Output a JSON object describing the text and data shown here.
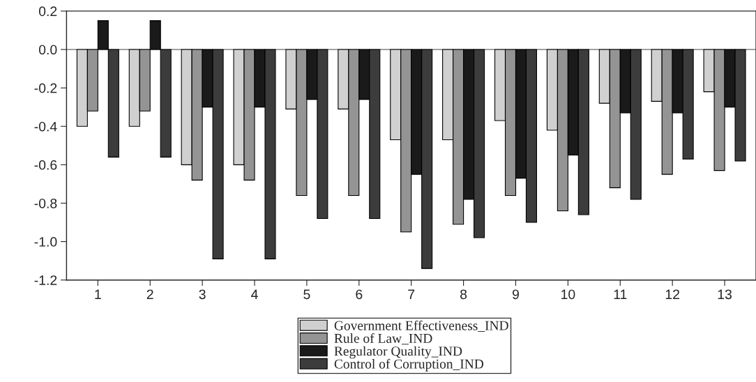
{
  "chart_data": {
    "type": "bar",
    "categories": [
      "1",
      "2",
      "3",
      "4",
      "5",
      "6",
      "7",
      "8",
      "9",
      "10",
      "11",
      "12",
      "13"
    ],
    "series": [
      {
        "name": "Government Effectiveness_IND",
        "color": "#d0d0d0",
        "values": [
          -0.4,
          -0.4,
          -0.6,
          -0.6,
          -0.31,
          -0.31,
          -0.47,
          -0.47,
          -0.37,
          -0.42,
          -0.28,
          -0.27,
          -0.22
        ]
      },
      {
        "name": "Rule of Law_IND",
        "color": "#949494",
        "values": [
          -0.32,
          -0.32,
          -0.68,
          -0.68,
          -0.76,
          -0.76,
          -0.95,
          -0.91,
          -0.76,
          -0.84,
          -0.72,
          -0.65,
          -0.63
        ]
      },
      {
        "name": "Regulator Quality_IND",
        "color": "#1a1a1a",
        "values": [
          0.15,
          0.15,
          -0.3,
          -0.3,
          -0.26,
          -0.26,
          -0.65,
          -0.78,
          -0.67,
          -0.55,
          -0.33,
          -0.33,
          -0.3
        ]
      },
      {
        "name": "Control of Corruption_IND",
        "color": "#3c3c3c",
        "values": [
          -0.56,
          -0.56,
          -1.09,
          -1.09,
          -0.88,
          -0.88,
          -1.14,
          -0.98,
          -0.9,
          -0.86,
          -0.78,
          -0.57,
          -0.58
        ]
      }
    ],
    "ylim": [
      -1.2,
      0.2
    ],
    "yticks": [
      {
        "value": 0.2,
        "label": "0.2"
      },
      {
        "value": 0.0,
        "label": "0.0"
      },
      {
        "value": -0.2,
        "label": "-0.2"
      },
      {
        "value": -0.4,
        "label": "-0.4"
      },
      {
        "value": -0.6,
        "label": "-0.6"
      },
      {
        "value": -0.8,
        "label": "-0.8"
      },
      {
        "value": -1.0,
        "label": "-1.0"
      },
      {
        "value": -1.2,
        "label": "-1.2"
      }
    ],
    "ref_lines": [
      {
        "axis": "y",
        "value": 0.0,
        "color": "#808080"
      }
    ],
    "grid": false,
    "legend": "bottom"
  }
}
